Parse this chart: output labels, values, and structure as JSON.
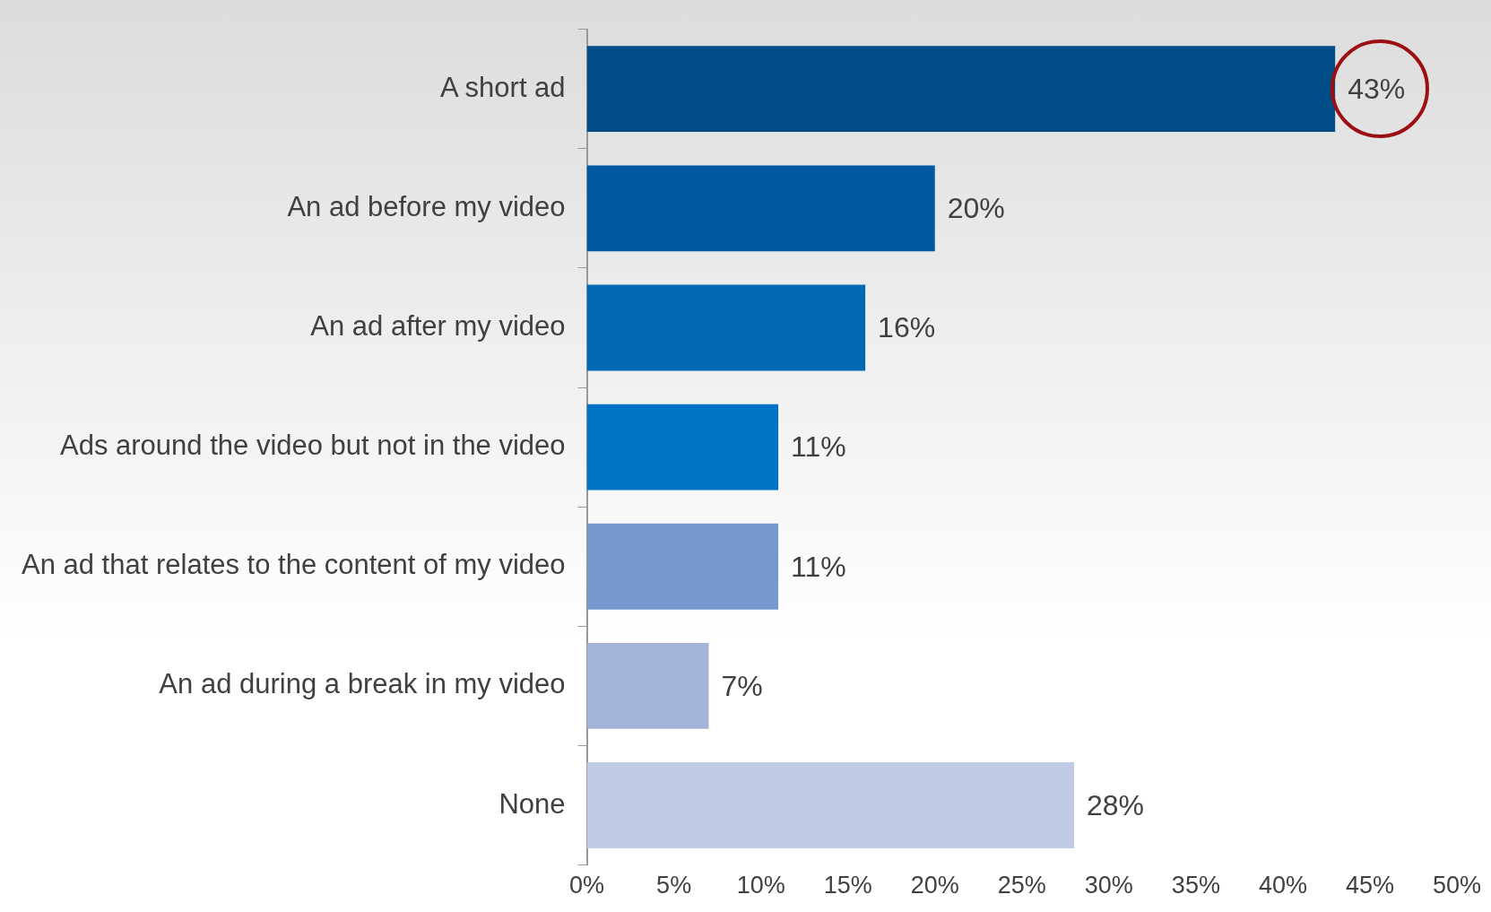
{
  "chart_data": {
    "type": "bar",
    "orientation": "horizontal",
    "categories": [
      "A short ad",
      "An ad before my video",
      "An ad after my video",
      "Ads around the video but not in the video",
      "An ad that relates to the content of my video",
      "An ad during a break in my video",
      "None"
    ],
    "values": [
      43,
      20,
      16,
      11,
      11,
      7,
      28
    ],
    "colors": [
      "#004c87",
      "#005aa3",
      "#0068b5",
      "#0074c4",
      "#7698cc",
      "#a2b4da",
      "#bfcbe4"
    ],
    "value_labels": [
      "43%",
      "20%",
      "16%",
      "11%",
      "11%",
      "7%",
      "28%"
    ],
    "xlim": [
      0,
      50
    ],
    "xticks": [
      {
        "value": 0,
        "label": "0%"
      },
      {
        "value": 5,
        "label": "5%"
      },
      {
        "value": 10,
        "label": "10%"
      },
      {
        "value": 15,
        "label": "15%"
      },
      {
        "value": 20,
        "label": "20%"
      },
      {
        "value": 25,
        "label": "25%"
      },
      {
        "value": 30,
        "label": "30%"
      },
      {
        "value": 35,
        "label": "35%"
      },
      {
        "value": 40,
        "label": "40%"
      },
      {
        "value": 45,
        "label": "45%"
      },
      {
        "value": 50,
        "label": "50%"
      }
    ],
    "grid": false,
    "legend": false
  }
}
